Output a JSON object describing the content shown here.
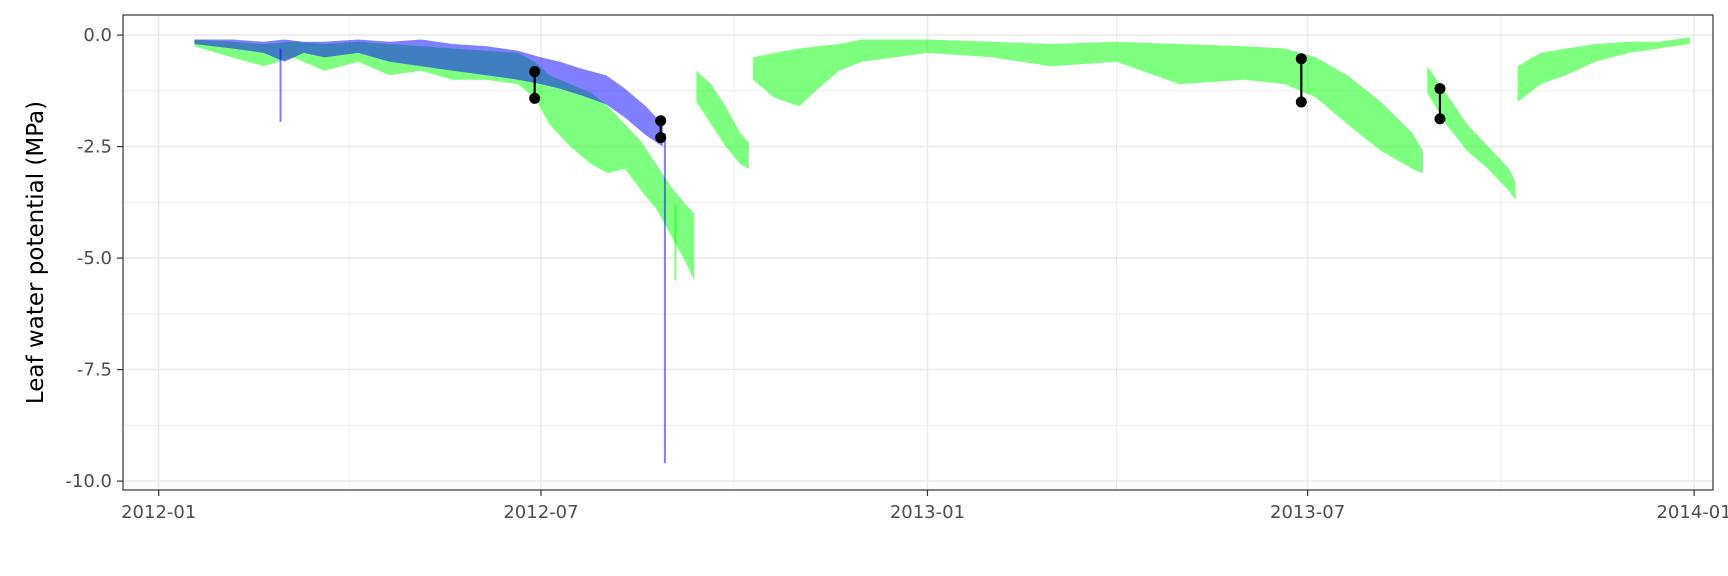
{
  "chart_data": {
    "type": "area",
    "title": "",
    "xlabel": "",
    "ylabel": "Leaf water potential (MPa)",
    "xlim": [
      "2011-12-15",
      "2014-01-10"
    ],
    "ylim": [
      -10.2,
      0.45
    ],
    "x_ticks": [
      {
        "date": "2012-01-01",
        "label": "2012-01"
      },
      {
        "date": "2012-07-01",
        "label": "2012-07"
      },
      {
        "date": "2013-01-01",
        "label": "2013-01"
      },
      {
        "date": "2013-07-01",
        "label": "2013-07"
      },
      {
        "date": "2014-01-01",
        "label": "2014-01"
      }
    ],
    "x_minor_ticks": [
      "2012-04-01",
      "2012-10-01",
      "2013-04-01",
      "2013-10-01"
    ],
    "y_ticks": [
      {
        "value": 0,
        "label": "0.0"
      },
      {
        "value": -2.5,
        "label": "-2.5"
      },
      {
        "value": -5,
        "label": "-5.0"
      },
      {
        "value": -7.5,
        "label": "-7.5"
      },
      {
        "value": -10,
        "label": "-10.0"
      }
    ],
    "y_minor_ticks": [
      -1.25,
      -3.75,
      -6.25,
      -8.75
    ],
    "grid": true,
    "legend": "none",
    "colors": {
      "green": "#00ff00",
      "blue": "#0000ff",
      "points": "#000000",
      "grid": "#ebebeb",
      "panel_border": "#333333"
    },
    "series": [
      {
        "color": "#00ff00",
        "opacity": 0.5,
        "segments": [
          {
            "x": [
              "2012-01-18",
              "2012-02-05",
              "2012-02-20",
              "2012-03-05",
              "2012-03-20",
              "2012-04-05",
              "2012-04-20",
              "2012-05-05",
              "2012-05-20",
              "2012-06-05",
              "2012-06-20",
              "2012-06-28",
              "2012-07-05",
              "2012-07-15",
              "2012-07-25",
              "2012-08-02",
              "2012-08-10",
              "2012-08-18",
              "2012-08-25",
              "2012-09-01",
              "2012-09-08",
              "2012-09-12"
            ],
            "upper": [
              -0.1,
              -0.15,
              -0.2,
              -0.15,
              -0.2,
              -0.15,
              -0.2,
              -0.25,
              -0.3,
              -0.35,
              -0.4,
              -0.6,
              -0.9,
              -1.1,
              -1.3,
              -1.6,
              -2.0,
              -2.4,
              -2.9,
              -3.4,
              -3.8,
              -4.0
            ],
            "lower": [
              -0.25,
              -0.5,
              -0.7,
              -0.5,
              -0.8,
              -0.6,
              -0.9,
              -0.8,
              -1.0,
              -1.0,
              -1.1,
              -1.4,
              -2.0,
              -2.5,
              -2.9,
              -3.1,
              -3.0,
              -3.5,
              -3.9,
              -4.5,
              -5.1,
              -5.5
            ]
          },
          {
            "x": [
              "2012-09-13",
              "2012-09-20",
              "2012-09-27",
              "2012-10-04",
              "2012-10-08"
            ],
            "upper": [
              -0.8,
              -1.1,
              -1.6,
              -2.2,
              -2.4
            ],
            "lower": [
              -1.5,
              -2.0,
              -2.5,
              -2.9,
              -3.0
            ]
          },
          {
            "x": [
              "2012-10-10",
              "2012-10-20",
              "2012-11-01",
              "2012-11-10",
              "2012-11-20",
              "2012-12-01",
              "2013-01-01",
              "2013-02-01",
              "2013-03-01",
              "2013-04-01",
              "2013-05-01",
              "2013-06-01",
              "2013-06-20",
              "2013-07-05",
              "2013-07-20",
              "2013-08-05",
              "2013-08-20",
              "2013-08-25"
            ],
            "upper": [
              -0.5,
              -0.4,
              -0.3,
              -0.25,
              -0.2,
              -0.1,
              -0.1,
              -0.15,
              -0.2,
              -0.15,
              -0.2,
              -0.25,
              -0.3,
              -0.5,
              -0.9,
              -1.5,
              -2.2,
              -2.6
            ],
            "lower": [
              -1.0,
              -1.4,
              -1.6,
              -1.2,
              -0.8,
              -0.6,
              -0.4,
              -0.5,
              -0.7,
              -0.6,
              -1.1,
              -1.0,
              -1.1,
              -1.4,
              -2.0,
              -2.6,
              -3.0,
              -3.1
            ]
          },
          {
            "x": [
              "2013-08-27",
              "2013-09-05",
              "2013-09-15",
              "2013-09-25",
              "2013-10-05",
              "2013-10-08"
            ],
            "upper": [
              -0.7,
              -1.3,
              -2.0,
              -2.5,
              -3.0,
              -3.3
            ],
            "lower": [
              -1.3,
              -2.0,
              -2.6,
              -3.0,
              -3.5,
              -3.7
            ]
          },
          {
            "x": [
              "2013-10-09",
              "2013-10-20",
              "2013-11-01",
              "2013-11-15",
              "2013-12-01",
              "2013-12-15",
              "2013-12-30"
            ],
            "upper": [
              -0.7,
              -0.4,
              -0.3,
              -0.2,
              -0.15,
              -0.15,
              -0.05
            ],
            "lower": [
              -1.5,
              -1.1,
              -0.9,
              -0.6,
              -0.4,
              -0.3,
              -0.2
            ]
          }
        ]
      },
      {
        "color": "#0000ff",
        "opacity": 0.5,
        "segments": [
          {
            "x": [
              "2012-01-18",
              "2012-02-05",
              "2012-02-20",
              "2012-03-01",
              "2012-03-10",
              "2012-03-20",
              "2012-04-05",
              "2012-04-20",
              "2012-05-05",
              "2012-05-20",
              "2012-06-05",
              "2012-06-20",
              "2012-07-01",
              "2012-07-10",
              "2012-07-20",
              "2012-08-01",
              "2012-08-10",
              "2012-08-20",
              "2012-08-28"
            ],
            "upper": [
              -0.1,
              -0.1,
              -0.15,
              -0.1,
              -0.15,
              -0.15,
              -0.1,
              -0.15,
              -0.1,
              -0.2,
              -0.25,
              -0.35,
              -0.5,
              -0.6,
              -0.75,
              -0.9,
              -1.2,
              -1.6,
              -2.0
            ],
            "lower": [
              -0.2,
              -0.3,
              -0.4,
              -0.6,
              -0.4,
              -0.5,
              -0.4,
              -0.6,
              -0.7,
              -0.8,
              -0.9,
              -1.0,
              -1.1,
              -1.2,
              -1.35,
              -1.55,
              -1.85,
              -2.25,
              -2.5
            ]
          }
        ]
      }
    ],
    "spikes": [
      {
        "date": "2012-02-28",
        "top": -0.3,
        "bottom": -1.95,
        "color": "#0000ff",
        "opacity": 0.5
      },
      {
        "date": "2012-08-29",
        "top": -2.2,
        "bottom": -9.6,
        "color": "#0000ff",
        "opacity": 0.5
      },
      {
        "date": "2012-09-03",
        "top": -3.8,
        "bottom": -5.5,
        "color": "#00ff00",
        "opacity": 0.5
      }
    ],
    "measurements": [
      {
        "date": "2012-06-28",
        "upper": -0.82,
        "lower": -1.42
      },
      {
        "date": "2012-08-27",
        "upper": -1.92,
        "lower": -2.3
      },
      {
        "date": "2013-06-28",
        "upper": -0.53,
        "lower": -1.5
      },
      {
        "date": "2013-09-02",
        "upper": -1.2,
        "lower": -1.88
      }
    ]
  }
}
